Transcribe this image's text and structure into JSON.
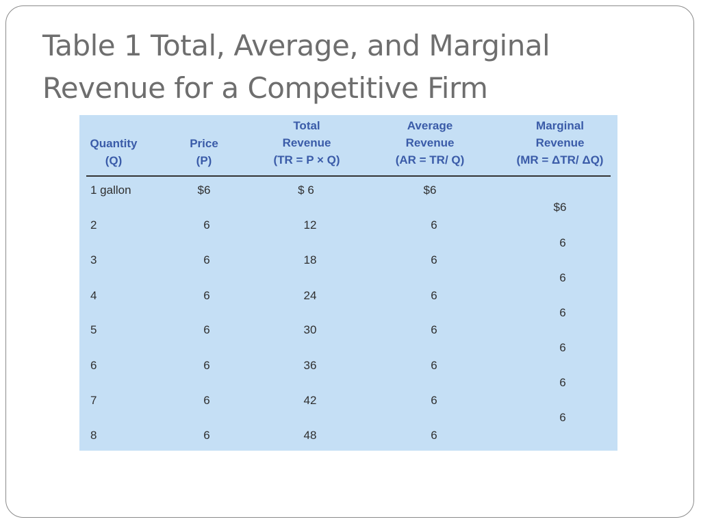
{
  "title": {
    "line1": "Table 1  Total, Average, and Marginal",
    "line2": "Revenue for a Competitive Firm"
  },
  "table": {
    "headers": [
      {
        "lines": [
          "Quantity",
          "(Q)"
        ]
      },
      {
        "lines": [
          "Price",
          "(P)"
        ]
      },
      {
        "lines": [
          "Total",
          "Revenue",
          "(TR = P × Q)"
        ]
      },
      {
        "lines": [
          "Average",
          "Revenue",
          "(AR = TR/ Q)"
        ]
      },
      {
        "lines": [
          "Marginal",
          "Revenue",
          "(MR = ΔTR/ ΔQ)"
        ]
      }
    ],
    "rows": [
      {
        "quantity": "1 gallon",
        "price": "$6",
        "total": "$  6",
        "average": "$6"
      },
      {
        "quantity": "2",
        "price": "6",
        "total": "12",
        "average": "6"
      },
      {
        "quantity": "3",
        "price": "6",
        "total": "18",
        "average": "6"
      },
      {
        "quantity": "4",
        "price": "6",
        "total": "24",
        "average": "6"
      },
      {
        "quantity": "5",
        "price": "6",
        "total": "30",
        "average": "6"
      },
      {
        "quantity": "6",
        "price": "6",
        "total": "36",
        "average": "6"
      },
      {
        "quantity": "7",
        "price": "6",
        "total": "42",
        "average": "6"
      },
      {
        "quantity": "8",
        "price": "6",
        "total": "48",
        "average": "6"
      }
    ],
    "marginal": [
      "$6",
      "6",
      "6",
      "6",
      "6",
      "6",
      "6"
    ]
  }
}
